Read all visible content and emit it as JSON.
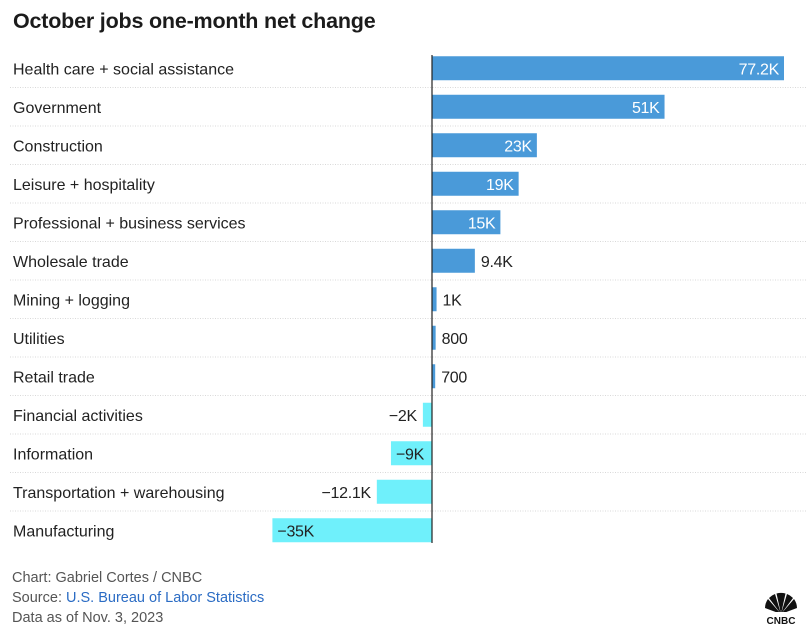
{
  "title": "October jobs one-month net change",
  "chart_data": {
    "type": "bar",
    "orientation": "horizontal",
    "title": "October jobs one-month net change",
    "categories": [
      "Health care + social assistance",
      "Government",
      "Construction",
      "Leisure + hospitality",
      "Professional + business services",
      "Wholesale trade",
      "Mining + logging",
      "Utilities",
      "Retail trade",
      "Financial activities",
      "Information",
      "Transportation + warehousing",
      "Manufacturing"
    ],
    "values": [
      77200,
      51000,
      23000,
      19000,
      15000,
      9400,
      1000,
      800,
      700,
      -2000,
      -9000,
      -12100,
      -35000
    ],
    "value_labels": [
      "77.2K",
      "51K",
      "23K",
      "19K",
      "15K",
      "9.4K",
      "1K",
      "800",
      "700",
      "−2K",
      "−9K",
      "−12.1K",
      "−35K"
    ],
    "xlim": [
      -35000,
      77200
    ],
    "grid": "row separators",
    "colors": {
      "positive": "#4a9ad9",
      "negative": "#6ff0fb"
    }
  },
  "footer": {
    "credit": "Chart: Gabriel Cortes / CNBC",
    "source_prefix": "Source: ",
    "source_link": "U.S. Bureau of Labor Statistics",
    "date": "Data as of Nov. 3, 2023"
  },
  "logo": {
    "icon": "nbc-peacock-icon",
    "text": "CNBC"
  }
}
